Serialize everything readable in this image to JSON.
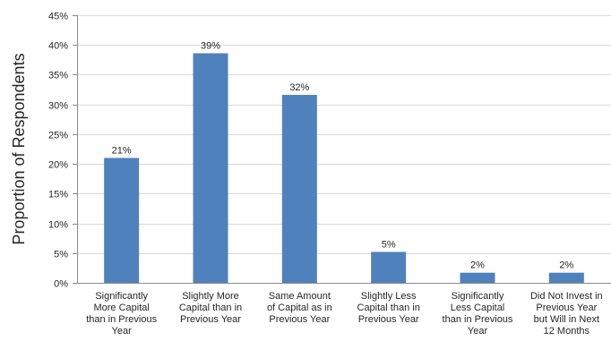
{
  "chart_data": {
    "type": "bar",
    "title": "",
    "xlabel": "",
    "ylabel": "Proportion of Respondents",
    "ylim": [
      0,
      45
    ],
    "y_ticks": [
      0,
      5,
      10,
      15,
      20,
      25,
      30,
      35,
      40,
      45
    ],
    "y_tick_labels": [
      "0%",
      "5%",
      "10%",
      "15%",
      "20%",
      "25%",
      "30%",
      "35%",
      "40%",
      "45%"
    ],
    "grid": "horizontal",
    "legend": "none",
    "bar_color": "#4f81bd",
    "categories": [
      "Significantly More Capital than in Previous Year",
      "Slightly More Capital than in Previous Year",
      "Same Amount of Capital as in Previous Year",
      "Slightly Less Capital than in Previous Year",
      "Significantly Less Capital than in Previous Year",
      "Did Not Invest in Previous Year but Will in Next 12 Months"
    ],
    "category_lines": [
      [
        "Significantly",
        "More Capital",
        "than in Previous",
        "Year"
      ],
      [
        "Slightly More",
        "Capital than in",
        "Previous Year"
      ],
      [
        "Same Amount",
        "of Capital as in",
        "Previous Year"
      ],
      [
        "Slightly Less",
        "Capital than in",
        "Previous Year"
      ],
      [
        "Significantly",
        "Less Capital",
        "than in Previous",
        "Year"
      ],
      [
        "Did Not Invest in",
        "Previous Year",
        "but Will in Next",
        "12 Months"
      ]
    ],
    "values": [
      21,
      38.6,
      31.6,
      5.2,
      1.7,
      1.7
    ],
    "data_labels": [
      "21%",
      "39%",
      "32%",
      "5%",
      "2%",
      "2%"
    ]
  }
}
